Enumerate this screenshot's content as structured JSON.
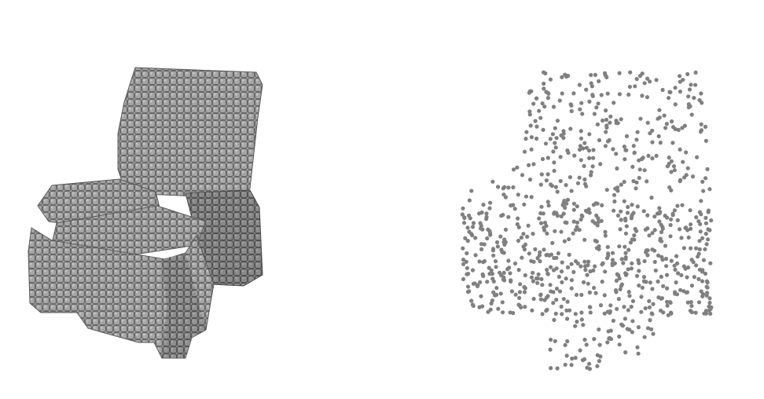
{
  "figure": {
    "background_color": "#ffffff",
    "panels": [
      {
        "id": "voxel-chair",
        "kind": "voxel-render",
        "object": "armchair",
        "voxel_face_color": "#9a9a9a",
        "voxel_edge_color": "#555555"
      },
      {
        "id": "point-cloud-chair",
        "kind": "point-cloud-render",
        "object": "armchair",
        "point_color": "#808080"
      }
    ]
  }
}
